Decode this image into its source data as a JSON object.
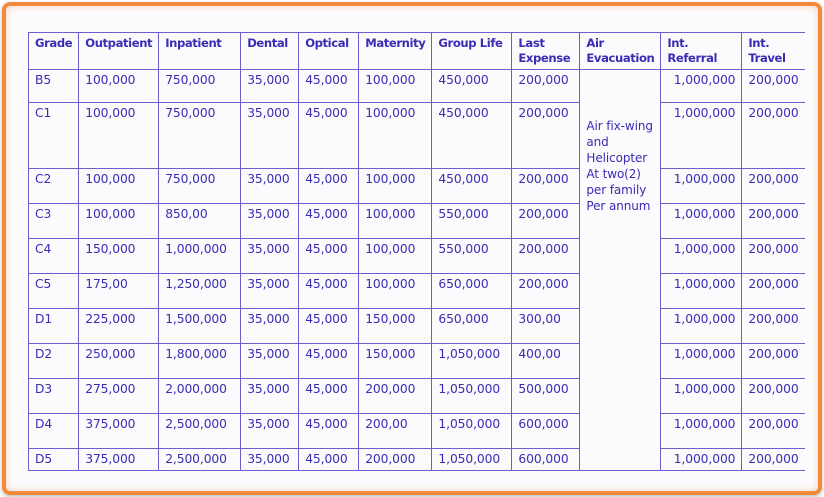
{
  "headers": [
    "Grade",
    "Outpatient",
    "Inpatient",
    "Dental",
    "Optical",
    "Maternity",
    "Group Life",
    "Last Expense",
    "Air Evacuation",
    "Int. Referral",
    "Int. Travel"
  ],
  "air_evacuation_note": "Air fix-wing and Helicopter At two(2) per family Per annum",
  "rows": [
    {
      "grade": "B5",
      "outpatient": "100,000",
      "inpatient": "750,000",
      "dental": "35,000",
      "optical": "45,000",
      "maternity": "100,000",
      "group_life": "450,000",
      "last_expense": "200,000",
      "int_referral": "1,000,000",
      "int_travel": "200,000"
    },
    {
      "grade": "C1",
      "outpatient": "100,000",
      "inpatient": "750,000",
      "dental": "35,000",
      "optical": "45,000",
      "maternity": "100,000",
      "group_life": "450,000",
      "last_expense": "200,000",
      "int_referral": "1,000,000",
      "int_travel": "200,000"
    },
    {
      "grade": "C2",
      "outpatient": "100,000",
      "inpatient": "750,000",
      "dental": "35,000",
      "optical": "45,000",
      "maternity": "100,000",
      "group_life": "450,000",
      "last_expense": "200,000",
      "int_referral": "1,000,000",
      "int_travel": "200,000"
    },
    {
      "grade": "C3",
      "outpatient": "100,000",
      "inpatient": "850,00",
      "dental": "35,000",
      "optical": "45,000",
      "maternity": "100,000",
      "group_life": "550,000",
      "last_expense": "200,000",
      "int_referral": "1,000,000",
      "int_travel": "200,000"
    },
    {
      "grade": "C4",
      "outpatient": "150,000",
      "inpatient": "1,000,000",
      "dental": "35,000",
      "optical": "45,000",
      "maternity": "100,000",
      "group_life": "550,000",
      "last_expense": "200,000",
      "int_referral": "1,000,000",
      "int_travel": "200,000"
    },
    {
      "grade": "C5",
      "outpatient": "175,00",
      "inpatient": "1,250,000",
      "dental": "35,000",
      "optical": "45,000",
      "maternity": "100,000",
      "group_life": "650,000",
      "last_expense": "200,000",
      "int_referral": "1,000,000",
      "int_travel": "200,000"
    },
    {
      "grade": "D1",
      "outpatient": "225,000",
      "inpatient": "1,500,000",
      "dental": "35,000",
      "optical": "45,000",
      "maternity": "150,000",
      "group_life": "650,000",
      "last_expense": "300,00",
      "int_referral": "1,000,000",
      "int_travel": "200,000"
    },
    {
      "grade": "D2",
      "outpatient": "250,000",
      "inpatient": "1,800,000",
      "dental": "35,000",
      "optical": "45,000",
      "maternity": "150,000",
      "group_life": "1,050,000",
      "last_expense": "400,00",
      "int_referral": "1,000,000",
      "int_travel": "200,000"
    },
    {
      "grade": "D3",
      "outpatient": "275,000",
      "inpatient": "2,000,000",
      "dental": "35,000",
      "optical": "45,000",
      "maternity": "200,000",
      "group_life": "1,050,000",
      "last_expense": "500,000",
      "int_referral": "1,000,000",
      "int_travel": "200,000"
    },
    {
      "grade": "D4",
      "outpatient": "375,000",
      "inpatient": "2,500,000",
      "dental": "35,000",
      "optical": "45,000",
      "maternity": "200,00",
      "group_life": "1,050,000",
      "last_expense": "600,000",
      "int_referral": "1,000,000",
      "int_travel": "200,000"
    },
    {
      "grade": "D5",
      "outpatient": "375,000",
      "inpatient": "2,500,000",
      "dental": "35,000",
      "optical": "45,000",
      "maternity": "200,000",
      "group_life": "1,050,000",
      "last_expense": "600,000",
      "int_referral": "1,000,000",
      "int_travel": "200,000"
    }
  ],
  "colors": {
    "frame": "#f08a3c",
    "text": "#3a2db3",
    "grid": "#6b5fcf"
  }
}
